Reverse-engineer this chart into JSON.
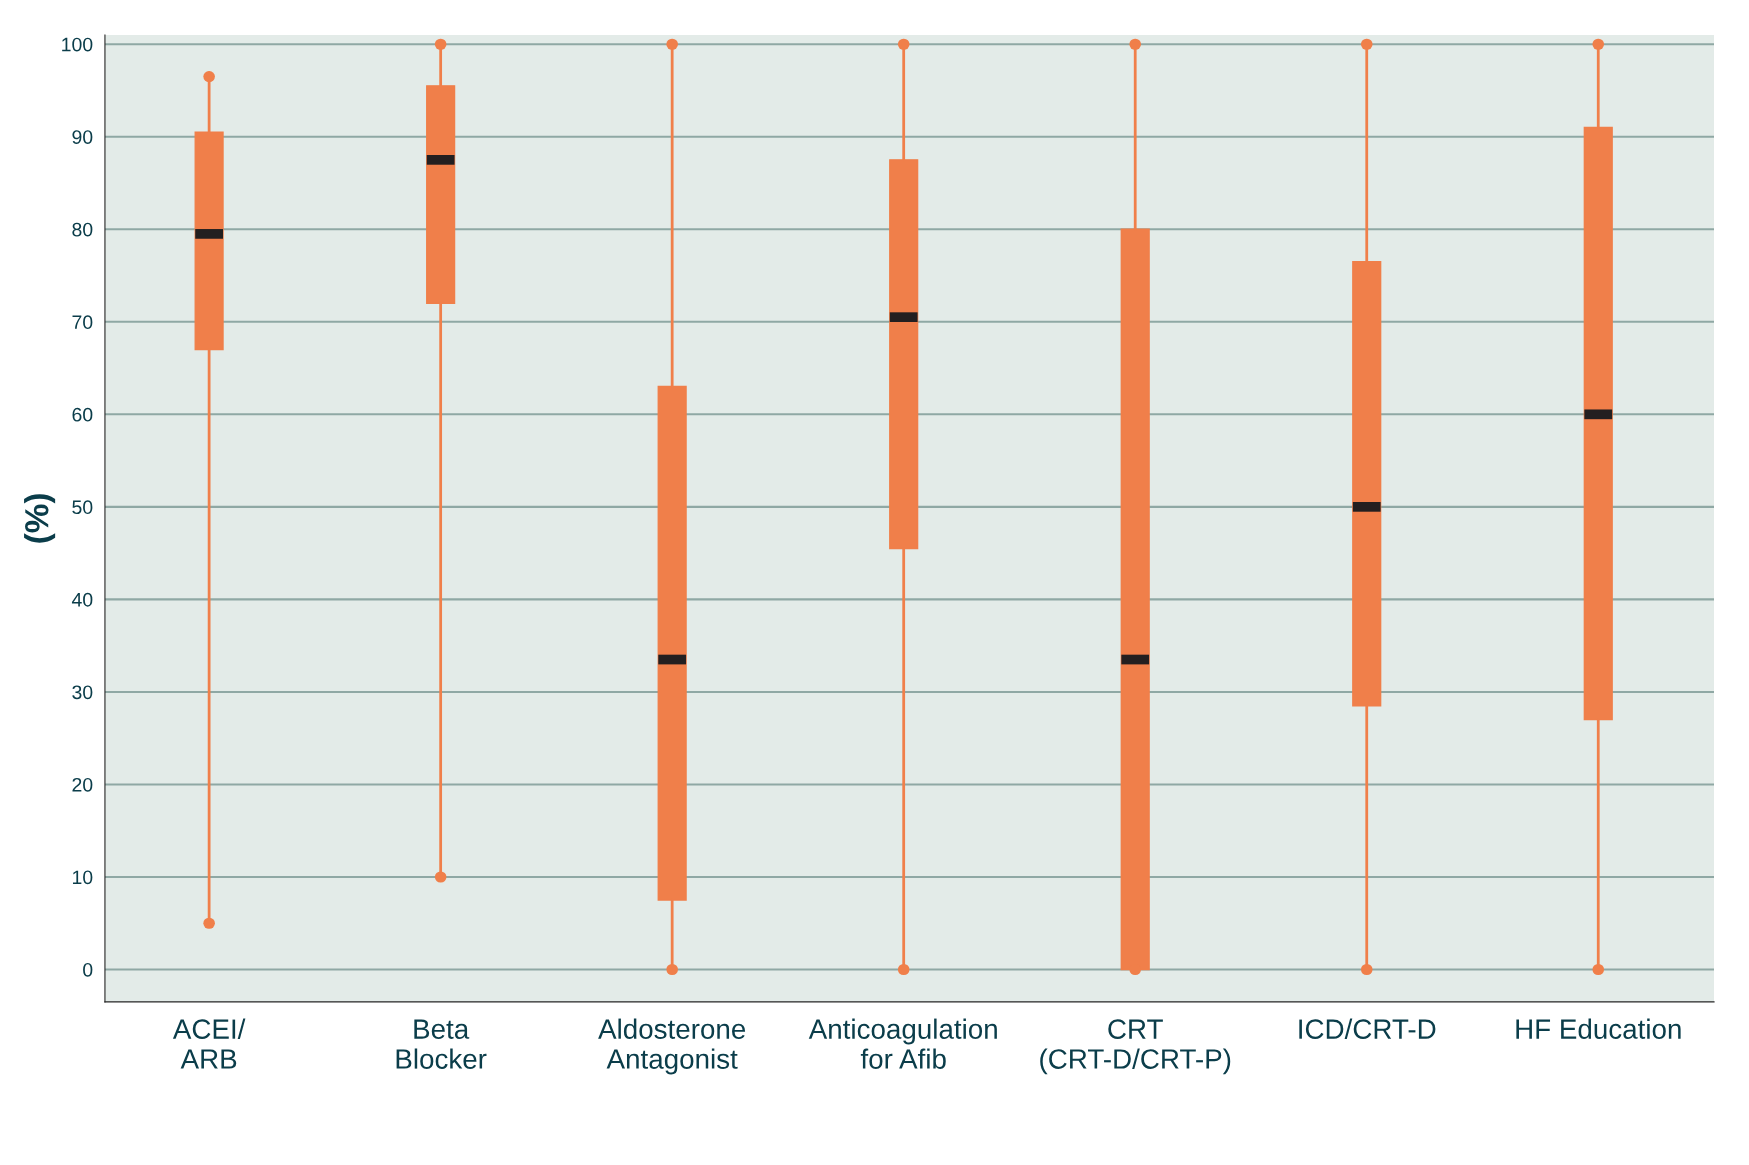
{
  "chart_data": {
    "type": "box",
    "ylabel": "(%)",
    "categories": [
      "ACEI/\nARB",
      "Beta\nBlocker",
      "Aldosterone\nAntagonist",
      "Anticoagulation\nfor Afib",
      "CRT\n(CRT-D/CRT-P)",
      "ICD/CRT-D",
      "HF Education"
    ],
    "color": "#f07f4a",
    "boxes": [
      {
        "low": 5,
        "q1": 67,
        "median": 79.5,
        "q3": 90.5,
        "high": 96.5
      },
      {
        "low": 10,
        "q1": 72,
        "median": 87.5,
        "q3": 95.5,
        "high": 100
      },
      {
        "low": 0,
        "q1": 7.5,
        "median": 33.5,
        "q3": 63,
        "high": 100
      },
      {
        "low": 0,
        "q1": 45.5,
        "median": 70.5,
        "q3": 87.5,
        "high": 100
      },
      {
        "low": 0,
        "q1": 0,
        "median": 33.5,
        "q3": 80,
        "high": 100
      },
      {
        "low": 0,
        "q1": 28.5,
        "median": 50,
        "q3": 76.5,
        "high": 100
      },
      {
        "low": 0,
        "q1": 27,
        "median": 60,
        "q3": 91,
        "high": 100
      }
    ],
    "ylim": [
      -3.5,
      101
    ],
    "yticks": [
      0,
      10,
      20,
      30,
      40,
      50,
      60,
      70,
      80,
      90,
      100
    ],
    "grid": "y"
  }
}
